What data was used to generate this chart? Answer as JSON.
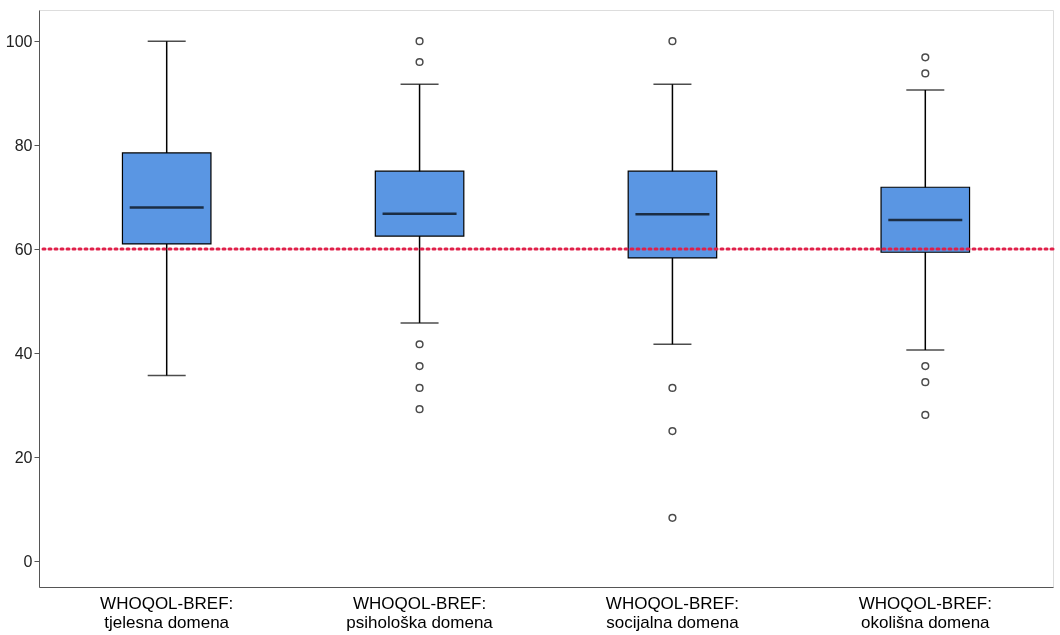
{
  "chart_data": {
    "type": "box",
    "categories": [
      "WHOQOL-BREF: tjelesna domena",
      "WHOQOL-BREF: psihološka domena",
      "WHOQOL-BREF: socijalna domena",
      "WHOQOL-BREF: okolišna domena"
    ],
    "color": "#5a96e3",
    "boxes": [
      {
        "low": 35.7,
        "q1": 61,
        "median": 68,
        "q3": 78.5,
        "high": 100
      },
      {
        "low": 45.8,
        "q1": 62.5,
        "median": 66.8,
        "q3": 75,
        "high": 91.7,
        "outliers": [
          100,
          96,
          41.7,
          37.5,
          33.3,
          29.2
        ]
      },
      {
        "low": 41.7,
        "q1": 58.3,
        "median": 66.7,
        "q3": 75,
        "high": 91.7,
        "outliers": [
          100,
          33.3,
          25,
          8.3
        ]
      },
      {
        "low": 40.6,
        "q1": 59.4,
        "median": 65.6,
        "q3": 71.9,
        "high": 90.6,
        "outliers": [
          96.9,
          93.8,
          37.5,
          34.4,
          28.1
        ]
      }
    ],
    "ylim": [
      -5,
      106
    ],
    "yticks": [
      0,
      20,
      40,
      60,
      80,
      100
    ],
    "ref_lines": [
      {
        "axis": "y",
        "value": 60,
        "color": "#e0204a",
        "line_style": "dotted"
      }
    ],
    "grid": false
  }
}
